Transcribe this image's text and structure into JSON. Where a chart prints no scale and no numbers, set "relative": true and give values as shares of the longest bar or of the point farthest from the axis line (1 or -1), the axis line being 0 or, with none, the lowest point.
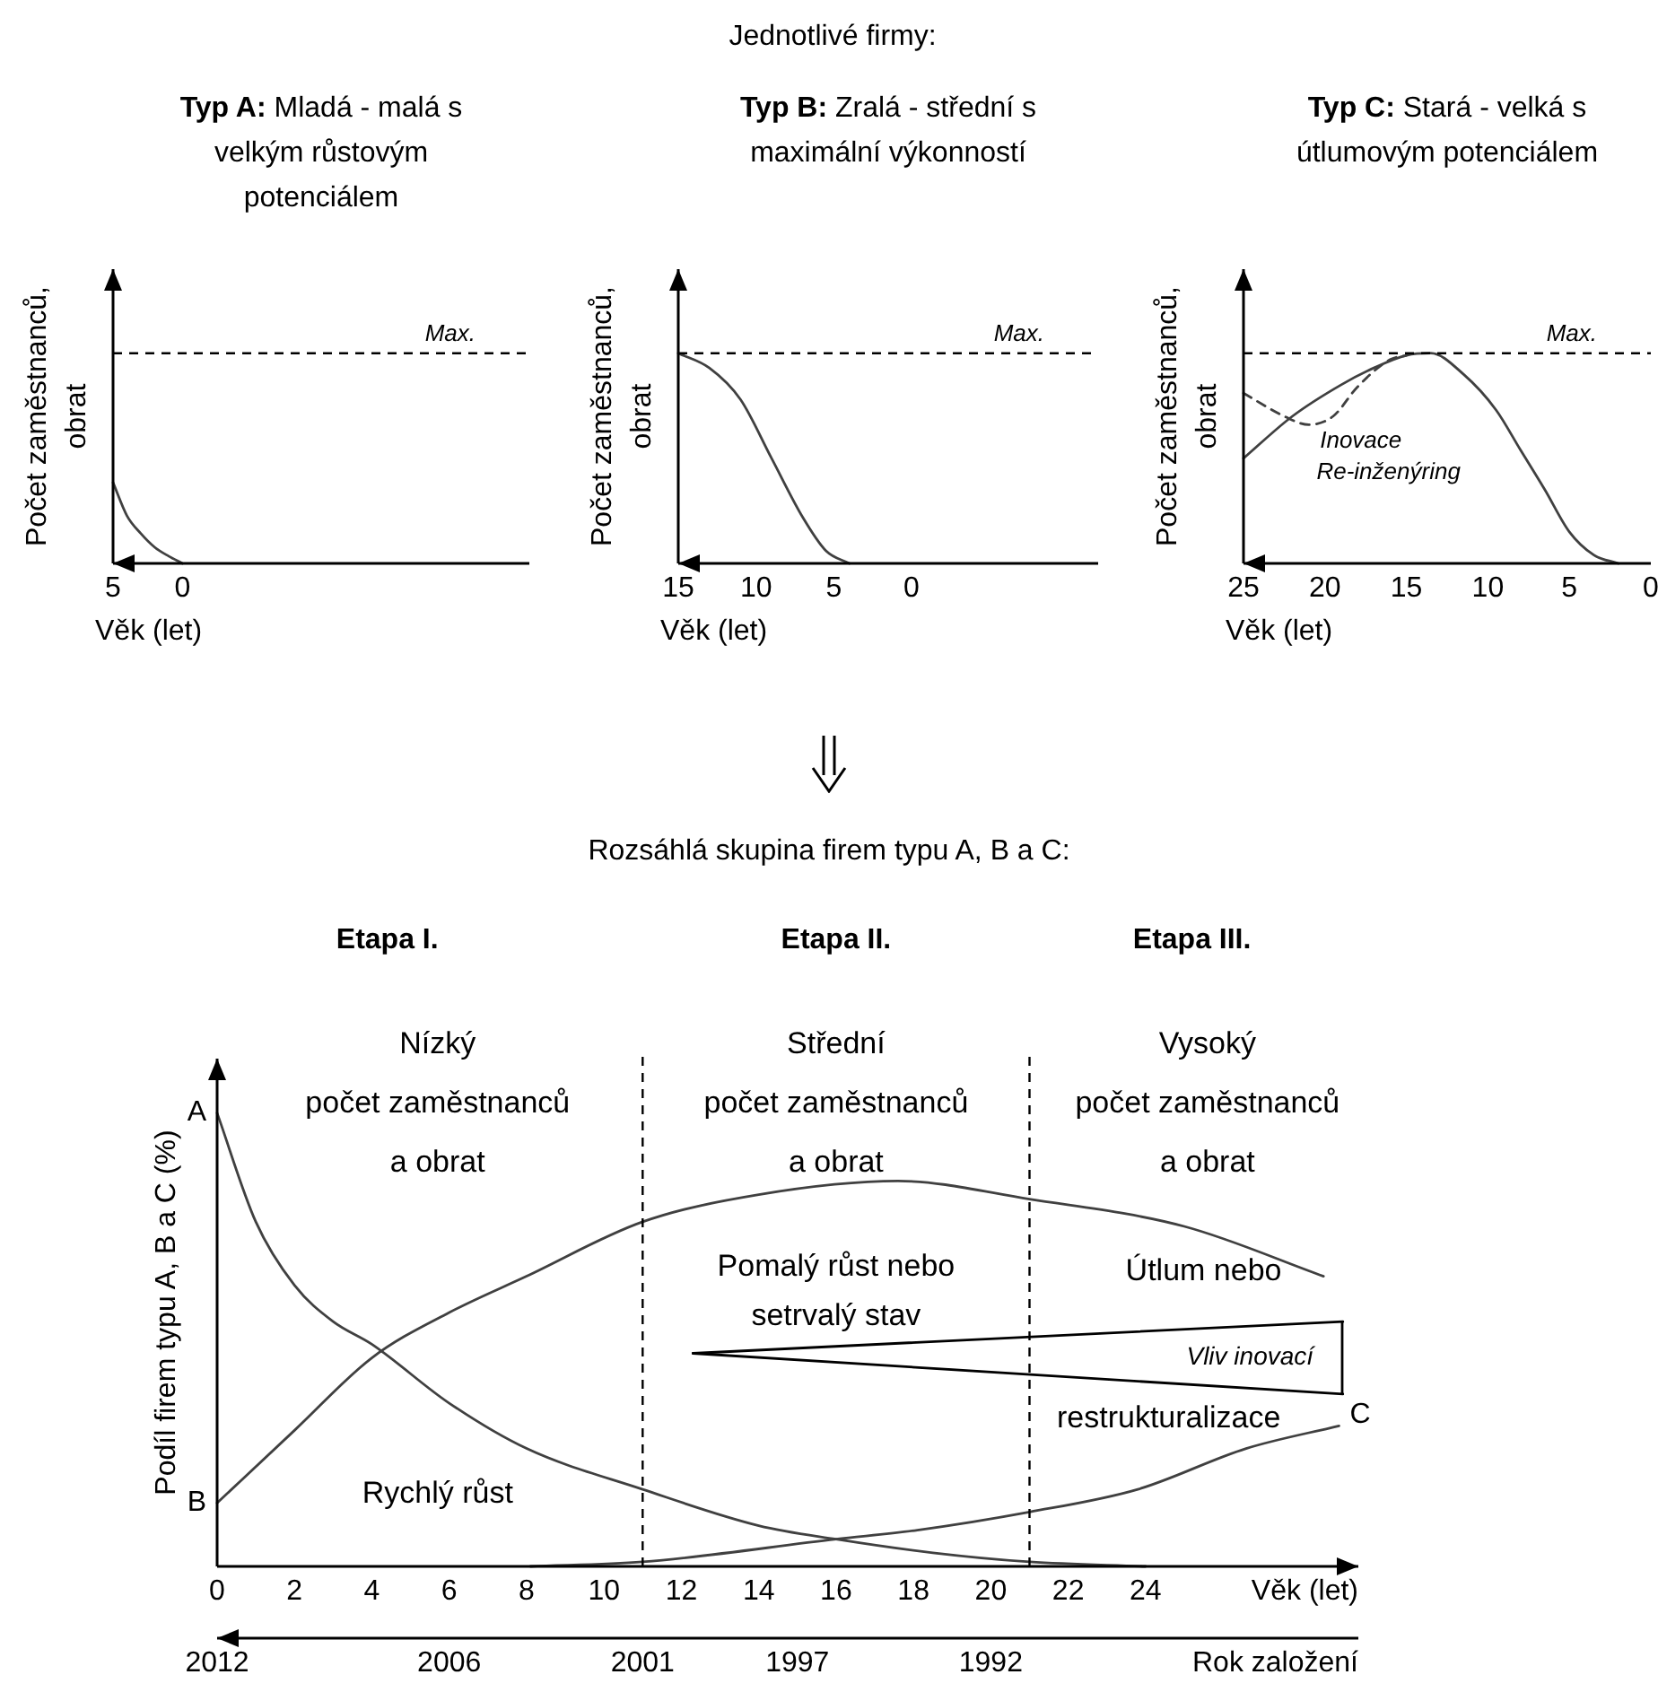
{
  "chart_data": [
    {
      "type": "line",
      "title": "Typ A: Mladá - malá s velkým růstovým potenciálem",
      "xlabel": "Věk (let)",
      "ylabel": "Počet zaměstnanců, obrat",
      "relative": true,
      "tick_labels": "x",
      "xlim": [
        5,
        -25
      ],
      "xticks": [
        5,
        0
      ],
      "series": [
        {
          "color": "#404040",
          "x": [
            5,
            4,
            3,
            2,
            1,
            0
          ],
          "values": [
            1,
            0.59,
            0.37,
            0.2,
            0.09,
            0
          ]
        }
      ],
      "ref_lines": [
        {
          "axis": "y",
          "value": 2.6,
          "label": "Max.",
          "line_style": "dashed",
          "color": "#000000"
        }
      ]
    },
    {
      "type": "line",
      "title": "Typ B: Zralá - střední s maximální výkonností",
      "xlabel": "Věk (let)",
      "ylabel": "Počet zaměstnanců, obrat",
      "relative": true,
      "tick_labels": "x",
      "xlim": [
        15,
        -12
      ],
      "xticks": [
        15,
        10,
        5,
        0
      ],
      "annotations": [
        "Jednotlivé firmy:"
      ],
      "series": [
        {
          "color": "#404040",
          "x": [
            15,
            13,
            11,
            9,
            7,
            5.5,
            4
          ],
          "values": [
            1,
            0.93,
            0.78,
            0.5,
            0.22,
            0.06,
            0
          ]
        }
      ],
      "ref_lines": [
        {
          "axis": "y",
          "value": 1,
          "label": "Max.",
          "line_style": "dashed",
          "color": "#000000"
        }
      ]
    },
    {
      "type": "line",
      "title": "Typ C: Stará - velká s útlumovým potenciálem",
      "xlabel": "Věk (let)",
      "ylabel": "Počet zaměstnanců, obrat",
      "relative": true,
      "tick_labels": "x",
      "xlim": [
        25,
        0
      ],
      "xticks": [
        25,
        20,
        15,
        10,
        5,
        0
      ],
      "annotations": [
        "Inovace",
        "Re-inženýring"
      ],
      "series": [
        {
          "color": "#404040",
          "x": [
            25,
            22,
            19,
            17,
            15,
            13.5,
            11.5,
            9.5,
            8,
            6.5,
            5,
            3.5,
            2
          ],
          "values": [
            0.5,
            0.7,
            0.85,
            0.93,
            0.99,
            1,
            0.9,
            0.73,
            0.54,
            0.35,
            0.15,
            0.04,
            0
          ]
        },
        {
          "color": "#404040",
          "line_style": "dashed",
          "x": [
            25,
            22.5,
            21,
            19.5,
            18,
            16,
            15
          ],
          "values": [
            0.81,
            0.7,
            0.66,
            0.7,
            0.84,
            0.97,
            0.99
          ]
        }
      ],
      "ref_lines": [
        {
          "axis": "y",
          "value": 1,
          "label": "Max.",
          "line_style": "dashed",
          "color": "#000000"
        }
      ]
    },
    {
      "type": "line",
      "title": "Rozsáhlá skupina firem typu A, B a C:",
      "xlabel": "Věk (let)",
      "ylabel": "Podíl firem typu A, B a C (%)",
      "x2label": "Rok založení",
      "relative": true,
      "tick_labels": "x",
      "xlim": [
        0,
        29.5
      ],
      "xticks": [
        0,
        2,
        4,
        6,
        8,
        10,
        12,
        14,
        16,
        18,
        20,
        22,
        24
      ],
      "x2lim": [
        2012,
        1982.5
      ],
      "x2ticks": [
        2012,
        2006,
        2001,
        1997,
        1992
      ],
      "series": [
        {
          "name": "A",
          "color": "#404040",
          "x": [
            0,
            1,
            2,
            3,
            4,
            6,
            8,
            11,
            14,
            16,
            18.5,
            21,
            24
          ],
          "values": [
            1,
            0.76,
            0.62,
            0.54,
            0.49,
            0.36,
            0.26,
            0.17,
            0.09,
            0.06,
            0.03,
            0.01,
            0
          ]
        },
        {
          "name": "B",
          "color": "#404040",
          "x": [
            0,
            2,
            4,
            6,
            8,
            11,
            14,
            17.6,
            21,
            25,
            28.6
          ],
          "values": [
            0.14,
            0.3,
            0.46,
            0.56,
            0.64,
            0.76,
            0.82,
            0.85,
            0.81,
            0.75,
            0.64
          ]
        },
        {
          "name": "C",
          "color": "#404040",
          "x": [
            8.1,
            11,
            16,
            18.1,
            21,
            23.8,
            26.6,
            29
          ],
          "values": [
            0,
            0.01,
            0.06,
            0.08,
            0.12,
            0.17,
            0.26,
            0.31
          ]
        },
        {
          "color": "#000000",
          "x": [
            12.3,
            29.1
          ],
          "values": [
            0.47,
            0.54
          ]
        },
        {
          "color": "#000000",
          "x": [
            12.3,
            29.1
          ],
          "values": [
            0.47,
            0.38
          ]
        }
      ],
      "ref_lines": [
        {
          "axis": "x",
          "value": 11,
          "line_style": "dashed",
          "color": "#000000"
        },
        {
          "axis": "x",
          "value": 21,
          "line_style": "dashed",
          "color": "#000000"
        }
      ],
      "annotations": [
        "Etapa I.",
        "Etapa II.",
        "Etapa III.",
        "Nízký",
        "počet zaměstnanců",
        "a obrat",
        "Střední",
        "počet zaměstnanců",
        "a obrat",
        "Vysoký",
        "počet zaměstnanců",
        "a obrat",
        "Pomalý růst nebo",
        "setrvalý stav",
        "Útlum nebo",
        "restrukturalizace",
        "Rychlý růst",
        "Vliv inovací"
      ]
    }
  ]
}
